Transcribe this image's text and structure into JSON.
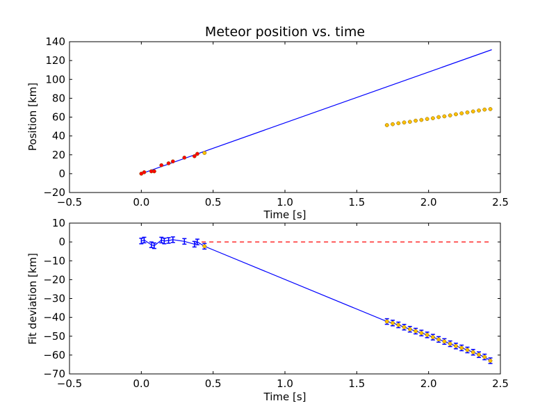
{
  "chart_data": [
    {
      "type": "line",
      "title": "Meteor position vs. time",
      "xlabel": "Time [s]",
      "ylabel": "Position [km]",
      "xlim": [
        -0.5,
        2.5
      ],
      "ylim": [
        -20,
        140
      ],
      "x_ticks": [
        "−0.5",
        "0.0",
        "0.5",
        "1.0",
        "1.5",
        "2.0",
        "2.5"
      ],
      "y_ticks": [
        "−20",
        "0",
        "20",
        "40",
        "60",
        "80",
        "100",
        "120",
        "140"
      ],
      "grid": false,
      "colors": {
        "fit": "#0000ff",
        "red_points": "#ff0000",
        "yellow_points": "#ffc000",
        "errorbar": "#808080"
      },
      "series": [
        {
          "style": "line",
          "color": "#0000ff",
          "points": [
            [
              0.0,
              0.0
            ],
            [
              2.44,
              131.5
            ]
          ]
        },
        {
          "style": "points",
          "color": "#ff0000",
          "points": [
            [
              0.0,
              0.0
            ],
            [
              0.02,
              1.5
            ],
            [
              0.07,
              2.5
            ],
            [
              0.09,
              2.5
            ],
            [
              0.14,
              9.0
            ],
            [
              0.19,
              11.0
            ],
            [
              0.22,
              13.0
            ],
            [
              0.3,
              17.0
            ],
            [
              0.37,
              18.5
            ],
            [
              0.39,
              21.0
            ]
          ]
        },
        {
          "style": "points",
          "color": "#ffc000",
          "points": [
            [
              0.44,
              22.0
            ],
            [
              1.71,
              51.5
            ],
            [
              1.75,
              52.5
            ],
            [
              1.79,
              53.5
            ],
            [
              1.83,
              54.3
            ],
            [
              1.87,
              55.0
            ],
            [
              1.91,
              56.2
            ],
            [
              1.95,
              57.0
            ],
            [
              1.99,
              58.0
            ],
            [
              2.03,
              58.8
            ],
            [
              2.07,
              60.0
            ],
            [
              2.11,
              60.8
            ],
            [
              2.15,
              61.8
            ],
            [
              2.19,
              63.0
            ],
            [
              2.23,
              64.0
            ],
            [
              2.27,
              65.0
            ],
            [
              2.31,
              66.0
            ],
            [
              2.35,
              67.0
            ],
            [
              2.39,
              68.0
            ],
            [
              2.43,
              68.5
            ]
          ]
        }
      ]
    },
    {
      "type": "line",
      "title": "",
      "xlabel": "Time [s]",
      "ylabel": "Fit deviation [km]",
      "xlim": [
        -0.5,
        2.5
      ],
      "ylim": [
        -70,
        10
      ],
      "x_ticks": [
        "−0.5",
        "0.0",
        "0.5",
        "1.0",
        "1.5",
        "2.0",
        "2.5"
      ],
      "y_ticks": [
        "−70",
        "−60",
        "−50",
        "−40",
        "−30",
        "−20",
        "−10",
        "0",
        "10"
      ],
      "grid": false,
      "colors": {
        "zero_line": "#ff0000",
        "blue": "#0000ff",
        "yellow_points": "#ffc000",
        "errorbar": "#808080"
      },
      "series": [
        {
          "style": "dashed",
          "color": "#ff0000",
          "points": [
            [
              0.42,
              0.0
            ],
            [
              2.44,
              0.0
            ]
          ]
        },
        {
          "style": "line-errorbar",
          "color": "#0000ff",
          "points": [
            [
              0.0,
              0.5
            ],
            [
              0.02,
              1.0
            ],
            [
              0.07,
              -1.5
            ],
            [
              0.09,
              -2.0
            ],
            [
              0.14,
              1.0
            ],
            [
              0.16,
              0.5
            ],
            [
              0.19,
              0.8
            ],
            [
              0.22,
              1.2
            ],
            [
              0.3,
              0.3
            ],
            [
              0.37,
              -1.2
            ],
            [
              0.39,
              0.0
            ],
            [
              0.44,
              -2.3
            ],
            [
              1.71,
              -42.2
            ],
            [
              1.75,
              -43.0
            ],
            [
              1.79,
              -44.0
            ],
            [
              1.83,
              -45.2
            ],
            [
              1.87,
              -46.3
            ],
            [
              1.91,
              -47.3
            ],
            [
              1.95,
              -48.3
            ],
            [
              1.99,
              -49.3
            ],
            [
              2.03,
              -50.5
            ],
            [
              2.07,
              -51.7
            ],
            [
              2.11,
              -52.8
            ],
            [
              2.15,
              -54.0
            ],
            [
              2.19,
              -55.2
            ],
            [
              2.23,
              -56.2
            ],
            [
              2.27,
              -57.3
            ],
            [
              2.31,
              -58.5
            ],
            [
              2.35,
              -59.8
            ],
            [
              2.39,
              -61.0
            ],
            [
              2.43,
              -63.0
            ]
          ]
        },
        {
          "style": "points",
          "color": "#ffc000",
          "points": [
            [
              0.44,
              -2.3
            ],
            [
              1.71,
              -42.2
            ],
            [
              1.75,
              -43.0
            ],
            [
              1.79,
              -44.0
            ],
            [
              1.83,
              -45.2
            ],
            [
              1.87,
              -46.3
            ],
            [
              1.91,
              -47.3
            ],
            [
              1.95,
              -48.3
            ],
            [
              1.99,
              -49.3
            ],
            [
              2.03,
              -50.5
            ],
            [
              2.07,
              -51.7
            ],
            [
              2.11,
              -52.8
            ],
            [
              2.15,
              -54.0
            ],
            [
              2.19,
              -55.2
            ],
            [
              2.23,
              -56.2
            ],
            [
              2.27,
              -57.3
            ],
            [
              2.31,
              -58.5
            ],
            [
              2.35,
              -59.8
            ],
            [
              2.39,
              -61.0
            ],
            [
              2.43,
              -63.0
            ]
          ]
        }
      ]
    }
  ]
}
